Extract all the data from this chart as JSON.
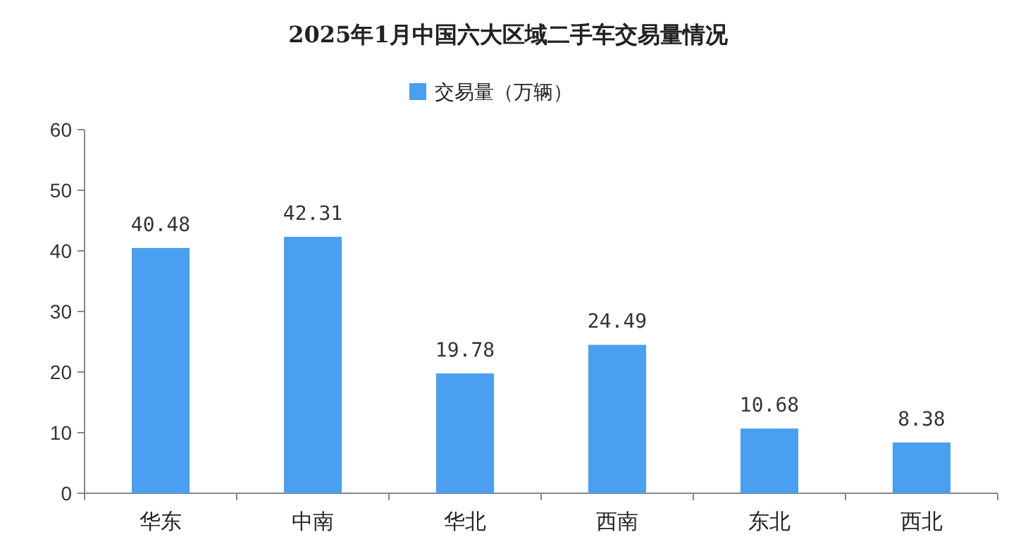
{
  "chart_data": {
    "type": "bar",
    "title": "2025年1月中国六大区域二手车交易量情况",
    "categories": [
      "华东",
      "中南",
      "华北",
      "西南",
      "东北",
      "西北"
    ],
    "series": [
      {
        "name": "交易量（万辆）",
        "color": "#4a9ff0",
        "values": [
          40.48,
          42.31,
          19.78,
          24.49,
          10.68,
          8.38
        ]
      }
    ],
    "ylim": [
      0,
      60
    ],
    "yticks": [
      0,
      10,
      20,
      30,
      40,
      50,
      60
    ],
    "data_labels": true,
    "legend": "top",
    "grid": false
  }
}
